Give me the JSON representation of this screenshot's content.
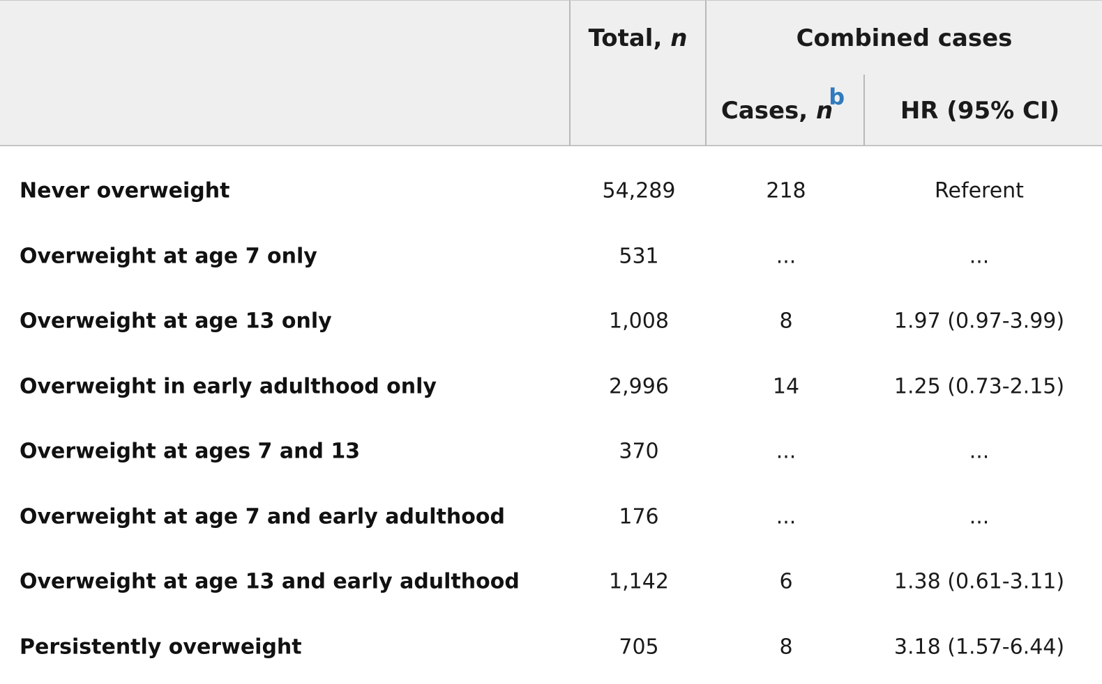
{
  "header": {
    "total_label": "Total, ",
    "total_n": "n",
    "group_label": "Combined cases",
    "cases_label": "Cases, ",
    "cases_n": "n",
    "cases_footnote": "b",
    "hr_label": "HR (95% CI)"
  },
  "rows": [
    {
      "label": "Never overweight",
      "total": "54,289",
      "cases": "218",
      "hr": "Referent"
    },
    {
      "label": "Overweight at age 7 only",
      "total": "531",
      "cases": "...",
      "hr": "..."
    },
    {
      "label": "Overweight at age 13 only",
      "total": "1,008",
      "cases": "8",
      "hr": "1.97 (0.97-3.99)"
    },
    {
      "label": "Overweight in early adulthood only",
      "total": "2,996",
      "cases": "14",
      "hr": "1.25 (0.73-2.15)"
    },
    {
      "label": "Overweight at ages 7 and 13",
      "total": "370",
      "cases": "...",
      "hr": "..."
    },
    {
      "label": "Overweight at age 7 and early adulthood",
      "total": "176",
      "cases": "...",
      "hr": "..."
    },
    {
      "label": "Overweight at age 13 and early adulthood",
      "total": "1,142",
      "cases": "6",
      "hr": "1.38 (0.61-3.11)"
    },
    {
      "label": "Persistently overweight",
      "total": "705",
      "cases": "8",
      "hr": "3.18 (1.57-6.44)"
    }
  ]
}
